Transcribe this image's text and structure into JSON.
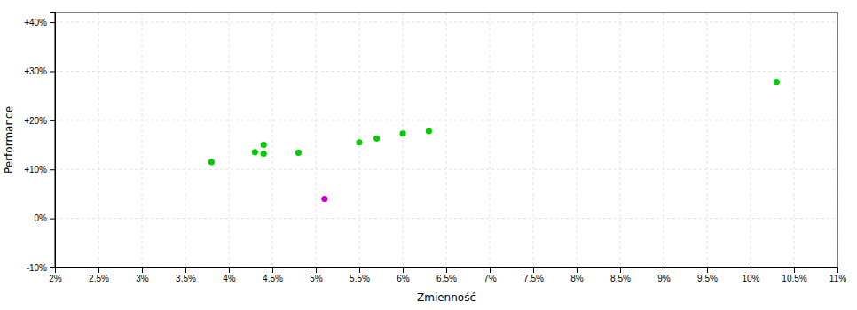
{
  "chart_data": {
    "type": "scatter",
    "xlabel": "Zmienność",
    "ylabel": "Performance",
    "xlim": [
      0.02,
      0.11
    ],
    "ylim": [
      -0.1,
      0.42
    ],
    "xticks": [
      {
        "value": 0.02,
        "label": "2%"
      },
      {
        "value": 0.025,
        "label": "2.5%"
      },
      {
        "value": 0.03,
        "label": "3%"
      },
      {
        "value": 0.035,
        "label": "3.5%"
      },
      {
        "value": 0.04,
        "label": "4%"
      },
      {
        "value": 0.045,
        "label": "4.5%"
      },
      {
        "value": 0.05,
        "label": "5%"
      },
      {
        "value": 0.055,
        "label": "5.5%"
      },
      {
        "value": 0.06,
        "label": "6%"
      },
      {
        "value": 0.065,
        "label": "6.5%"
      },
      {
        "value": 0.07,
        "label": "7%"
      },
      {
        "value": 0.075,
        "label": "7.5%"
      },
      {
        "value": 0.08,
        "label": "8%"
      },
      {
        "value": 0.085,
        "label": "8.5%"
      },
      {
        "value": 0.09,
        "label": "9%"
      },
      {
        "value": 0.095,
        "label": "9.5%"
      },
      {
        "value": 0.1,
        "label": "10%"
      },
      {
        "value": 0.105,
        "label": "10.5%"
      },
      {
        "value": 0.11,
        "label": "11%"
      }
    ],
    "yticks": [
      {
        "value": -0.1,
        "label": "-10%"
      },
      {
        "value": 0.0,
        "label": "0%"
      },
      {
        "value": 0.1,
        "label": "+10%"
      },
      {
        "value": 0.2,
        "label": "+20%"
      },
      {
        "value": 0.3,
        "label": "+30%"
      },
      {
        "value": 0.4,
        "label": "+40%"
      }
    ],
    "grid": true,
    "series": [
      {
        "color": "#00cc00",
        "marker": "circle",
        "x": [
          0.038,
          0.043,
          0.044,
          0.044,
          0.048,
          0.055,
          0.057,
          0.06,
          0.063,
          0.103
        ],
        "values": [
          0.115,
          0.135,
          0.15,
          0.132,
          0.134,
          0.155,
          0.163,
          0.173,
          0.178,
          0.278
        ]
      },
      {
        "color": "#cc00cc",
        "marker": "circle",
        "x": [
          0.051
        ],
        "values": [
          0.04
        ]
      }
    ]
  }
}
